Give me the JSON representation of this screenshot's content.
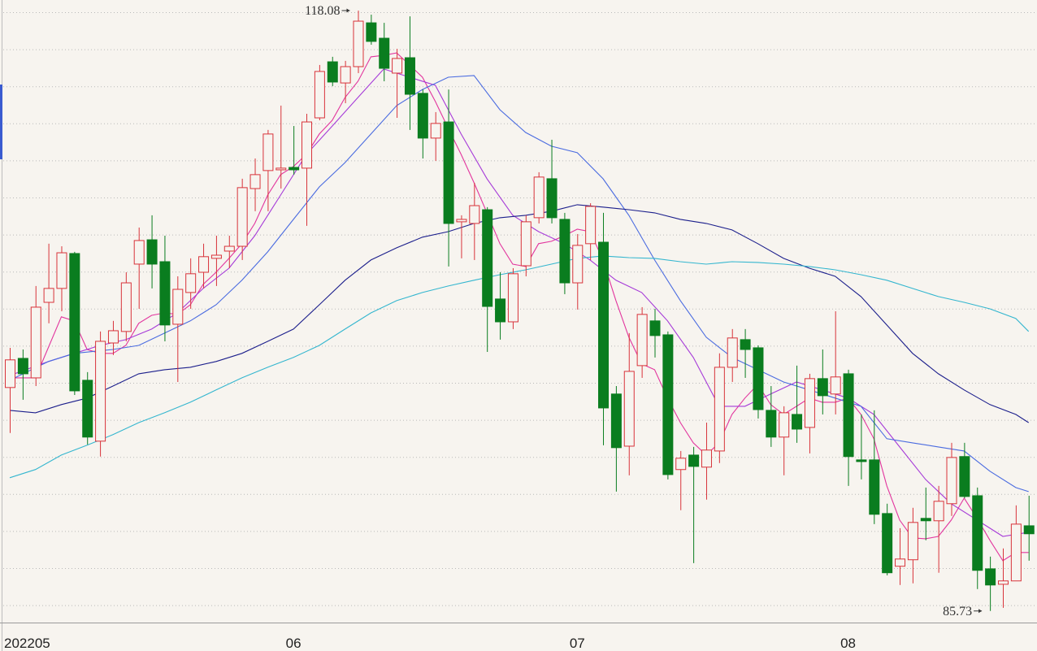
{
  "chart_data": {
    "type": "candlestick",
    "categories": [
      "202205",
      null,
      null,
      null,
      null,
      null,
      null,
      null,
      null,
      null,
      null,
      null,
      null,
      null,
      null,
      null,
      null,
      null,
      null,
      null,
      null,
      null,
      "06",
      null,
      null,
      null,
      null,
      null,
      null,
      null,
      null,
      null,
      null,
      null,
      null,
      null,
      null,
      null,
      null,
      null,
      null,
      null,
      null,
      null,
      "07",
      null,
      null,
      null,
      null,
      null,
      null,
      null,
      null,
      null,
      null,
      null,
      null,
      null,
      null,
      null,
      null,
      null,
      null,
      null,
      null,
      "08",
      null,
      null,
      null,
      null,
      null,
      null,
      null,
      null,
      null,
      null,
      null,
      null,
      null,
      null
    ],
    "open": [
      97.77,
      99.34,
      98.29,
      102.36,
      103.11,
      104.99,
      98.16,
      94.88,
      100.17,
      100.79,
      104.42,
      105.73,
      104.55,
      101.18,
      102.89,
      103.98,
      104.73,
      105.12,
      105.38,
      108.49,
      109.46,
      109.5,
      109.63,
      109.59,
      112.3,
      115.32,
      114.18,
      115.06,
      117.42,
      116.59,
      114.71,
      115.54,
      113.62,
      111.21,
      112.08,
      106.7,
      106.61,
      107.35,
      102.54,
      101.31,
      104.33,
      106.92,
      109.02,
      106.83,
      103.41,
      105.52,
      105.6,
      97.42,
      94.61,
      98.95,
      101.36,
      100.61,
      93.35,
      94.13,
      93.48,
      94.35,
      98.86,
      100.35,
      99.91,
      96.54,
      95.1,
      96.32,
      95.62,
      98.25,
      97.42,
      98.51,
      93.87,
      93.87,
      90.98,
      88.14,
      88.49,
      90.72,
      90.59,
      91.51,
      94.05,
      91.94,
      88.0,
      87.17,
      87.35,
      90.32
    ],
    "high": [
      99.91,
      99.82,
      103.24,
      105.52,
      105.38,
      105.08,
      98.6,
      100.79,
      101.36,
      103.98,
      106.39,
      107.05,
      105.95,
      103.76,
      104.73,
      105.52,
      105.95,
      105.95,
      109.02,
      110.11,
      111.65,
      112.96,
      111.86,
      112.52,
      115.15,
      115.59,
      115.37,
      118.08,
      117.86,
      117.42,
      116.02,
      117.77,
      113.83,
      112.61,
      113.83,
      107.05,
      108.8,
      107.49,
      103.98,
      104.2,
      107.05,
      109.37,
      111.12,
      107.18,
      106.04,
      107.7,
      107.18,
      97.85,
      100.7,
      102.1,
      102.01,
      100.79,
      94.35,
      94.57,
      95.88,
      99.61,
      100.92,
      100.92,
      100.04,
      97.85,
      96.76,
      98.95,
      98.51,
      99.82,
      101.88,
      98.73,
      96.32,
      96.54,
      91.51,
      90.19,
      91.29,
      92.38,
      92.47,
      94.79,
      94.79,
      92.38,
      88.66,
      89.1,
      91.42,
      91.94
    ],
    "low": [
      95.32,
      97.11,
      97.85,
      101.23,
      101.88,
      97.37,
      94.7,
      94.05,
      99.52,
      100.26,
      102.01,
      103.11,
      100.26,
      98.07,
      102.01,
      103.11,
      103.24,
      104.2,
      104.64,
      107.27,
      107.27,
      108.49,
      109.24,
      106.48,
      112.17,
      114.01,
      113.09,
      114.71,
      116.24,
      114.27,
      112.3,
      111.65,
      110.11,
      109.98,
      104.29,
      104.73,
      104.64,
      99.69,
      100.35,
      100.92,
      103.76,
      106.61,
      106.61,
      102.8,
      101.97,
      104.64,
      94.66,
      92.16,
      93.04,
      98.29,
      99.39,
      92.82,
      91.16,
      88.31,
      91.73,
      93.7,
      98.07,
      98.29,
      96.1,
      94.57,
      93.04,
      94.79,
      94.22,
      96.32,
      96.32,
      92.47,
      92.82,
      90.41,
      87.65,
      87.13,
      87.22,
      89.54,
      87.79,
      90.85,
      91.81,
      86.91,
      85.73,
      85.9,
      87.35,
      88.44
    ],
    "close": [
      99.26,
      98.51,
      102.1,
      103.11,
      105.03,
      97.59,
      95.1,
      100.26,
      100.83,
      103.41,
      105.69,
      104.42,
      101.14,
      103.06,
      103.9,
      104.82,
      104.9,
      105.38,
      108.54,
      109.24,
      111.43,
      109.59,
      109.5,
      112.08,
      114.8,
      114.23,
      115.06,
      117.51,
      116.42,
      114.97,
      115.5,
      113.57,
      111.21,
      112.0,
      106.61,
      106.83,
      107.57,
      102.14,
      101.31,
      103.9,
      106.7,
      109.11,
      106.92,
      103.41,
      105.43,
      107.53,
      96.67,
      94.53,
      98.64,
      101.71,
      100.57,
      93.08,
      93.96,
      93.52,
      94.4,
      98.86,
      100.44,
      99.82,
      96.58,
      95.1,
      96.41,
      95.53,
      98.25,
      97.33,
      98.34,
      94.05,
      93.78,
      90.94,
      87.79,
      88.53,
      90.5,
      90.59,
      91.64,
      94.0,
      91.9,
      87.92,
      87.13,
      87.35,
      90.41,
      89.89
    ],
    "up_color": "#d8333a",
    "down_color": "#0a7d1f",
    "ylim": [
      85.15,
      118.65
    ],
    "grid": true,
    "lines": [
      {
        "color": "#e2359e",
        "x": [
          0,
          2,
          4,
          5,
          6,
          7,
          8,
          9,
          10,
          11,
          12,
          13,
          14,
          15,
          16,
          17,
          18,
          19,
          20,
          21,
          22,
          23,
          24,
          25,
          26,
          27,
          28,
          29,
          30,
          31,
          32,
          33,
          34,
          35,
          36,
          37,
          38,
          39,
          40,
          41,
          42,
          43,
          44,
          45,
          46,
          47,
          48,
          49,
          50,
          51,
          52,
          53,
          54,
          55,
          56,
          57,
          58,
          59,
          60,
          61,
          62,
          63,
          64,
          65,
          66,
          67,
          68,
          69,
          70,
          71,
          72,
          73,
          74,
          75,
          76,
          77,
          78,
          79
        ],
        "values": [
          98.29,
          98.29,
          101.58,
          101.36,
          99.82,
          99.61,
          99.61,
          100.04,
          101.23,
          101.66,
          101.79,
          101.71,
          102.23,
          103.33,
          103.98,
          104.73,
          105.52,
          106.61,
          108.14,
          109.24,
          109.68,
          110.33,
          111.43,
          112.17,
          113.4,
          114.27,
          115.59,
          115.67,
          115.8,
          115.15,
          114.49,
          113.18,
          111.73,
          110.33,
          108.8,
          107.18,
          105.52,
          104.42,
          104.29,
          105.52,
          105.65,
          105.95,
          106.3,
          106.17,
          104.64,
          102.45,
          100.48,
          99.04,
          98.73,
          97.2,
          95.88,
          94.79,
          94.13,
          94.79,
          96.32,
          97.2,
          97.94,
          96.85,
          96.32,
          96.76,
          97.2,
          96.98,
          96.98,
          97.2,
          96.32,
          95.01,
          92.47,
          90.63,
          89.67,
          89.62,
          89.75,
          90.63,
          91.81,
          90.72,
          89.54,
          88.44,
          88.88,
          88.88
        ]
      },
      {
        "color": "#a63ad8",
        "x": [
          0,
          3,
          5,
          7,
          9,
          11,
          13,
          15,
          17,
          19,
          21,
          23,
          25,
          27,
          29,
          31,
          33,
          35,
          37,
          39,
          41,
          43,
          45,
          47,
          49,
          51,
          53,
          55,
          57,
          59,
          61,
          63,
          65,
          67,
          69,
          71,
          73,
          75,
          77,
          79
        ],
        "values": [
          98.42,
          99.17,
          99.61,
          100.04,
          100.35,
          100.92,
          101.79,
          103.11,
          104.2,
          105.95,
          108.14,
          110.33,
          111.86,
          113.4,
          114.93,
          114.49,
          114.05,
          111.43,
          109.02,
          107.05,
          106.17,
          105.52,
          104.64,
          103.55,
          102.89,
          101.36,
          99.39,
          96.76,
          96.76,
          97.42,
          98.07,
          97.64,
          97.2,
          96.32,
          94.57,
          92.82,
          91.51,
          90.63,
          89.75,
          89.97
        ]
      },
      {
        "color": "#4a6be0",
        "x": [
          0,
          3,
          5,
          8,
          10,
          12,
          14,
          16,
          18,
          20,
          22,
          24,
          26,
          28,
          30,
          32,
          34,
          36,
          38,
          40,
          42,
          44,
          46,
          48,
          50,
          52,
          54,
          56,
          58,
          60,
          62,
          64,
          66,
          68,
          70,
          72,
          74,
          76,
          78,
          79
        ],
        "values": [
          98.16,
          99.17,
          99.61,
          99.82,
          100.04,
          100.7,
          101.36,
          102.23,
          103.55,
          105.08,
          106.83,
          108.58,
          109.89,
          111.43,
          112.96,
          113.83,
          114.49,
          114.58,
          112.74,
          111.51,
          110.77,
          110.42,
          109.02,
          107.05,
          104.64,
          102.45,
          100.48,
          99.39,
          98.73,
          98.07,
          97.64,
          97.2,
          96.76,
          95.01,
          94.79,
          94.57,
          94.35,
          93.26,
          92.38,
          92.16
        ]
      },
      {
        "color": "#1c1f8c",
        "x": [
          0,
          2,
          4,
          6,
          8,
          10,
          12,
          14,
          16,
          18,
          20,
          22,
          24,
          26,
          28,
          30,
          32,
          34,
          36,
          38,
          40,
          42,
          44,
          46,
          48,
          50,
          52,
          54,
          56,
          58,
          60,
          62,
          64,
          66,
          68,
          70,
          72,
          74,
          76,
          78,
          79
        ],
        "values": [
          96.54,
          96.41,
          96.85,
          97.2,
          97.85,
          98.51,
          98.73,
          98.86,
          99.17,
          99.61,
          100.26,
          100.92,
          102.23,
          103.55,
          104.64,
          105.3,
          105.87,
          106.17,
          106.61,
          106.92,
          107.05,
          107.27,
          107.62,
          107.49,
          107.35,
          107.18,
          106.83,
          106.61,
          106.26,
          105.52,
          104.73,
          104.2,
          103.76,
          102.67,
          101.14,
          99.61,
          98.51,
          97.64,
          96.85,
          96.32,
          95.88
        ]
      },
      {
        "color": "#34b6cf",
        "x": [
          0,
          2,
          4,
          6,
          8,
          10,
          12,
          14,
          16,
          18,
          20,
          22,
          24,
          26,
          28,
          30,
          32,
          34,
          36,
          38,
          40,
          42,
          44,
          46,
          48,
          50,
          52,
          54,
          56,
          58,
          60,
          62,
          64,
          66,
          68,
          70,
          72,
          74,
          76,
          78,
          79
        ],
        "values": [
          92.91,
          93.35,
          94.13,
          94.66,
          95.23,
          95.88,
          96.41,
          96.98,
          97.64,
          98.29,
          98.86,
          99.39,
          100.04,
          100.92,
          101.79,
          102.45,
          102.89,
          103.24,
          103.55,
          103.85,
          104.11,
          104.42,
          104.73,
          104.86,
          104.77,
          104.73,
          104.55,
          104.42,
          104.55,
          104.51,
          104.42,
          104.29,
          104.11,
          103.85,
          103.55,
          103.11,
          102.67,
          102.36,
          102.01,
          101.49,
          100.79
        ]
      }
    ]
  }
}
